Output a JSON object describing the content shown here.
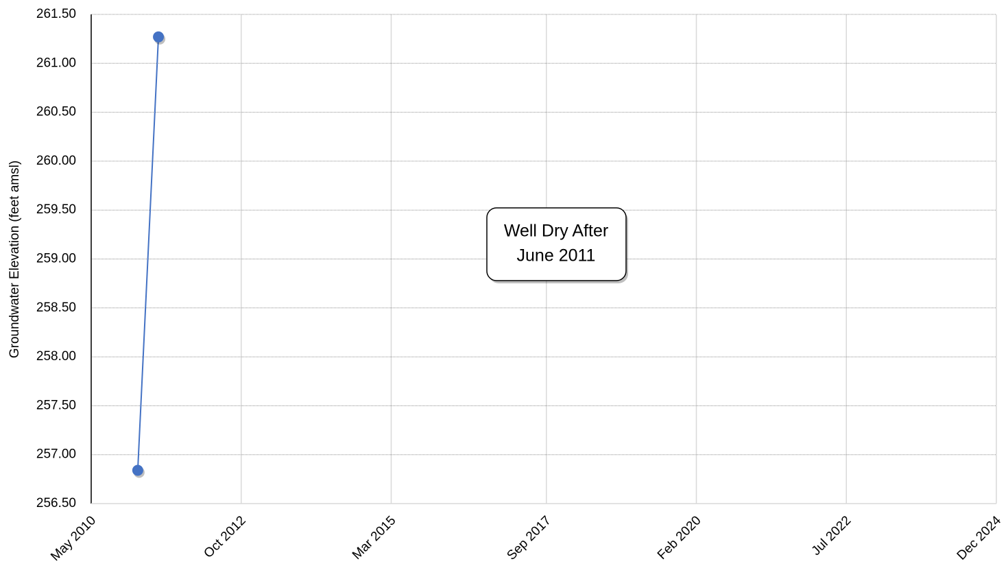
{
  "chart_data": {
    "type": "line",
    "y_label": "Groundwater Elevation (feet amsl)",
    "annotation": [
      "Well Dry After",
      "June 2011"
    ],
    "x": [
      "2011-02",
      "2011-06"
    ],
    "series": [
      {
        "name": "Groundwater Elevation",
        "color": "#4472c4",
        "values": [
          256.84,
          261.27
        ]
      }
    ],
    "xlim": [
      "2010-05",
      "2024-12"
    ],
    "xticks": [
      {
        "value": "2010-05",
        "label": "May 2010"
      },
      {
        "value": "2012-10",
        "label": "Oct 2012"
      },
      {
        "value": "2015-03",
        "label": "Mar 2015"
      },
      {
        "value": "2017-09",
        "label": "Sep 2017"
      },
      {
        "value": "2020-02",
        "label": "Feb 2020"
      },
      {
        "value": "2022-07",
        "label": "Jul 2022"
      },
      {
        "value": "2024-12",
        "label": "Dec 2024"
      }
    ],
    "ylim": [
      256.5,
      261.5
    ],
    "yticks": [
      {
        "value": 256.5,
        "label": "256.50"
      },
      {
        "value": 257,
        "label": "257.00"
      },
      {
        "value": 257.5,
        "label": "257.50"
      },
      {
        "value": 258,
        "label": "258.00"
      },
      {
        "value": 258.5,
        "label": "258.50"
      },
      {
        "value": 259,
        "label": "259.00"
      },
      {
        "value": 259.5,
        "label": "259.50"
      },
      {
        "value": 260,
        "label": "260.00"
      },
      {
        "value": 260.5,
        "label": "260.50"
      },
      {
        "value": 261,
        "label": "261.00"
      },
      {
        "value": 261.5,
        "label": "261.50"
      }
    ],
    "grid": true
  }
}
